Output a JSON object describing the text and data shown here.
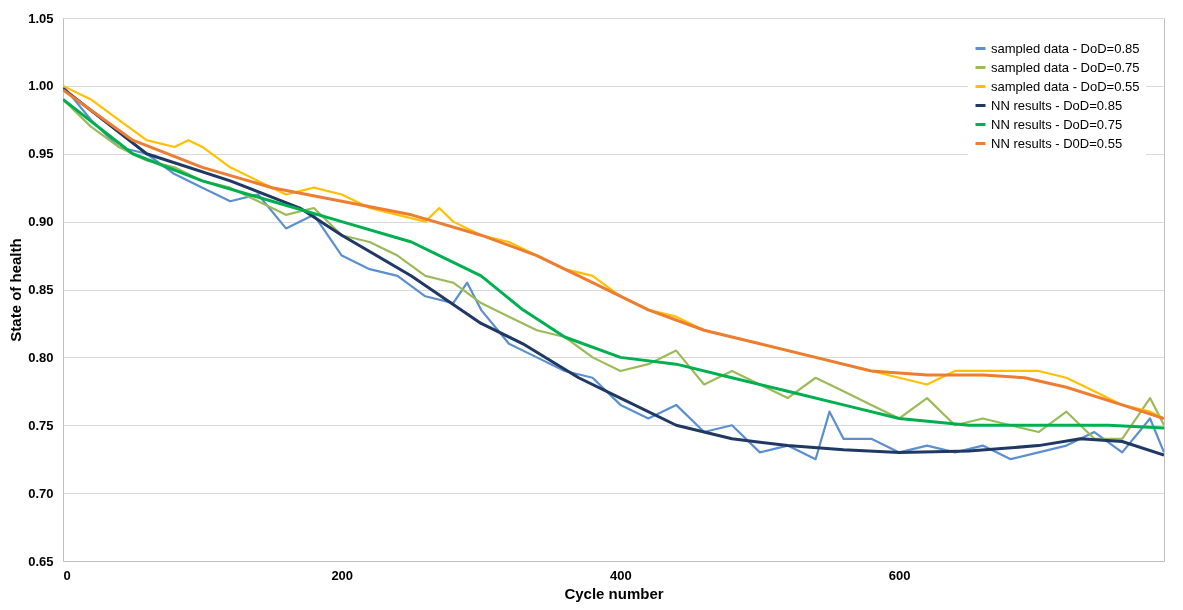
{
  "chart_data": {
    "type": "line",
    "xlabel": "Cycle number",
    "ylabel": "State of health",
    "xlim": [
      0,
      790
    ],
    "xticks": [
      0,
      200,
      400,
      600
    ],
    "ylim": [
      0.65,
      1.05
    ],
    "yticks": [
      {
        "value": 0.65,
        "label": "0.65"
      },
      {
        "value": 0.7,
        "label": "0.70"
      },
      {
        "value": 0.75,
        "label": "0.75"
      },
      {
        "value": 0.8,
        "label": "0.80"
      },
      {
        "value": 0.85,
        "label": "0.85"
      },
      {
        "value": 0.9,
        "label": "0.90"
      },
      {
        "value": 0.95,
        "label": "0.95"
      },
      {
        "value": 1.0,
        "label": "1.00"
      },
      {
        "value": 1.05,
        "label": "1.05"
      }
    ],
    "grid": "y",
    "legend": "top right",
    "series": [
      {
        "name": "sampled data - DoD=0.85",
        "color": "#5b8fd0",
        "x": [
          0,
          20,
          40,
          60,
          80,
          100,
          120,
          140,
          160,
          180,
          200,
          220,
          240,
          260,
          280,
          290,
          300,
          320,
          340,
          360,
          380,
          400,
          420,
          440,
          460,
          480,
          500,
          520,
          540,
          550,
          560,
          580,
          600,
          620,
          640,
          660,
          680,
          700,
          720,
          740,
          760,
          780,
          790
        ],
        "values": [
          1.0,
          0.975,
          0.955,
          0.95,
          0.935,
          0.925,
          0.915,
          0.92,
          0.895,
          0.905,
          0.875,
          0.865,
          0.86,
          0.845,
          0.84,
          0.855,
          0.835,
          0.81,
          0.8,
          0.79,
          0.785,
          0.765,
          0.755,
          0.765,
          0.745,
          0.75,
          0.73,
          0.735,
          0.725,
          0.76,
          0.74,
          0.74,
          0.73,
          0.735,
          0.73,
          0.735,
          0.725,
          0.73,
          0.735,
          0.745,
          0.73,
          0.755,
          0.73
        ]
      },
      {
        "name": "sampled data - DoD=0.75",
        "color": "#9bbb59",
        "x": [
          0,
          20,
          40,
          60,
          80,
          100,
          120,
          140,
          160,
          180,
          200,
          220,
          240,
          260,
          280,
          300,
          320,
          340,
          360,
          380,
          400,
          420,
          440,
          460,
          480,
          500,
          520,
          540,
          560,
          580,
          600,
          620,
          640,
          660,
          680,
          700,
          720,
          740,
          760,
          780,
          790
        ],
        "values": [
          0.99,
          0.97,
          0.955,
          0.945,
          0.94,
          0.93,
          0.925,
          0.915,
          0.905,
          0.91,
          0.89,
          0.885,
          0.875,
          0.86,
          0.855,
          0.84,
          0.83,
          0.82,
          0.815,
          0.8,
          0.79,
          0.795,
          0.805,
          0.78,
          0.79,
          0.78,
          0.77,
          0.785,
          0.775,
          0.765,
          0.755,
          0.77,
          0.75,
          0.755,
          0.75,
          0.745,
          0.76,
          0.74,
          0.74,
          0.77,
          0.75
        ]
      },
      {
        "name": "sampled data - DoD=0.55",
        "color": "#ffc000",
        "x": [
          0,
          20,
          40,
          60,
          80,
          90,
          100,
          120,
          140,
          160,
          180,
          200,
          220,
          240,
          260,
          270,
          280,
          300,
          320,
          340,
          360,
          380,
          400,
          420,
          440,
          460,
          480,
          500,
          520,
          540,
          560,
          580,
          600,
          620,
          640,
          660,
          680,
          700,
          720,
          740,
          760,
          780,
          790
        ],
        "values": [
          1.0,
          0.99,
          0.975,
          0.96,
          0.955,
          0.96,
          0.955,
          0.94,
          0.93,
          0.92,
          0.925,
          0.92,
          0.91,
          0.905,
          0.9,
          0.91,
          0.9,
          0.89,
          0.885,
          0.875,
          0.865,
          0.86,
          0.845,
          0.835,
          0.83,
          0.82,
          0.815,
          0.81,
          0.805,
          0.8,
          0.795,
          0.79,
          0.785,
          0.78,
          0.79,
          0.79,
          0.79,
          0.79,
          0.785,
          0.775,
          0.765,
          0.76,
          0.755
        ]
      },
      {
        "name": "NN results - DoD=0.85",
        "color": "#1f3864",
        "x": [
          0,
          60,
          120,
          170,
          200,
          250,
          300,
          330,
          370,
          400,
          440,
          480,
          520,
          560,
          600,
          650,
          700,
          730,
          760,
          790
        ],
        "values": [
          0.998,
          0.95,
          0.93,
          0.91,
          0.89,
          0.86,
          0.825,
          0.81,
          0.785,
          0.77,
          0.75,
          0.74,
          0.735,
          0.732,
          0.73,
          0.731,
          0.735,
          0.74,
          0.738,
          0.728
        ]
      },
      {
        "name": "NN results - DoD=0.75",
        "color": "#00b050",
        "x": [
          0,
          50,
          100,
          150,
          200,
          250,
          300,
          330,
          360,
          400,
          440,
          480,
          520,
          560,
          600,
          650,
          700,
          750,
          790
        ],
        "values": [
          0.99,
          0.95,
          0.93,
          0.915,
          0.9,
          0.885,
          0.86,
          0.835,
          0.815,
          0.8,
          0.795,
          0.785,
          0.775,
          0.765,
          0.755,
          0.75,
          0.75,
          0.75,
          0.748
        ]
      },
      {
        "name": "NN results - D0D=0.55",
        "color": "#ed7d31",
        "x": [
          0,
          50,
          100,
          150,
          200,
          250,
          300,
          340,
          380,
          420,
          460,
          500,
          540,
          580,
          620,
          660,
          690,
          720,
          760,
          790
        ],
        "values": [
          0.997,
          0.96,
          0.94,
          0.925,
          0.915,
          0.905,
          0.89,
          0.875,
          0.855,
          0.835,
          0.82,
          0.81,
          0.8,
          0.79,
          0.787,
          0.787,
          0.785,
          0.778,
          0.765,
          0.755
        ]
      }
    ]
  }
}
